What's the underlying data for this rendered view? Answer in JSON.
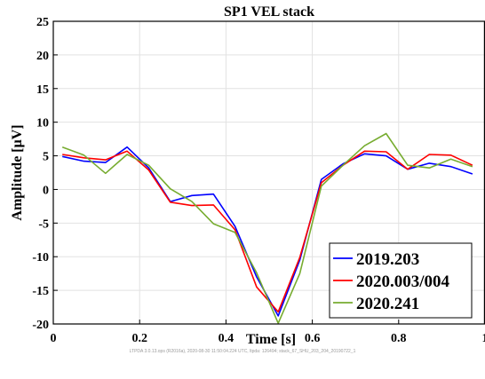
{
  "chart_data": {
    "type": "line",
    "title": "SP1 VEL stack",
    "xlabel": "Time  [s]",
    "ylabel": "Amplitude  [μV]",
    "xlim": [
      0,
      1
    ],
    "ylim": [
      -20,
      25
    ],
    "xticks": [
      0,
      0.2,
      0.4,
      0.6,
      0.8,
      1
    ],
    "xtick_labels": [
      "0",
      "0.2",
      "0.4",
      "0.6",
      "0.8",
      "1"
    ],
    "yticks": [
      -20,
      -15,
      -10,
      -5,
      0,
      5,
      10,
      15,
      20,
      25
    ],
    "ytick_labels": [
      "-20",
      "-15",
      "-10",
      "-5",
      "0",
      "5",
      "10",
      "15",
      "20",
      "25"
    ],
    "grid": true,
    "legend_position": "bottom-right",
    "series": [
      {
        "name": "2019.203",
        "color": "#0000ff",
        "x": [
          0.021,
          0.071,
          0.121,
          0.171,
          0.221,
          0.271,
          0.321,
          0.371,
          0.421,
          0.471,
          0.521,
          0.571,
          0.621,
          0.671,
          0.721,
          0.771,
          0.821,
          0.871,
          0.921,
          0.971
        ],
        "y": [
          4.9,
          4.2,
          4.0,
          6.3,
          3.2,
          -1.8,
          -0.9,
          -0.7,
          -5.5,
          -13.0,
          -18.8,
          -10.5,
          1.5,
          3.8,
          5.3,
          5.0,
          3.0,
          3.9,
          3.4,
          2.3
        ]
      },
      {
        "name": "2020.003/004",
        "color": "#ff0000",
        "x": [
          0.021,
          0.071,
          0.121,
          0.171,
          0.221,
          0.271,
          0.321,
          0.371,
          0.421,
          0.471,
          0.521,
          0.571,
          0.621,
          0.671,
          0.721,
          0.771,
          0.821,
          0.871,
          0.921,
          0.971
        ],
        "y": [
          5.2,
          4.7,
          4.4,
          5.7,
          2.9,
          -1.9,
          -2.4,
          -2.3,
          -6.0,
          -14.5,
          -18.2,
          -10.1,
          1.0,
          3.6,
          5.7,
          5.6,
          3.0,
          5.2,
          5.1,
          3.6
        ]
      },
      {
        "name": "2020.241",
        "color": "#77ac30",
        "x": [
          0.021,
          0.071,
          0.121,
          0.171,
          0.221,
          0.271,
          0.321,
          0.371,
          0.421,
          0.471,
          0.521,
          0.571,
          0.621,
          0.671,
          0.721,
          0.771,
          0.821,
          0.871,
          0.921,
          0.971
        ],
        "y": [
          6.3,
          5.1,
          2.4,
          5.2,
          3.6,
          0.1,
          -1.8,
          -5.1,
          -6.4,
          -12.4,
          -19.9,
          -12.5,
          0.5,
          3.6,
          6.5,
          8.3,
          3.6,
          3.2,
          4.5,
          3.4
        ]
      }
    ]
  },
  "footer_text": "LTPDA 3.0.13.ops (R2016a), 2020-08-30 11:50:04.224 UTC, ltpda: 126494; stack_67_SHU_203_204_20190722_1"
}
